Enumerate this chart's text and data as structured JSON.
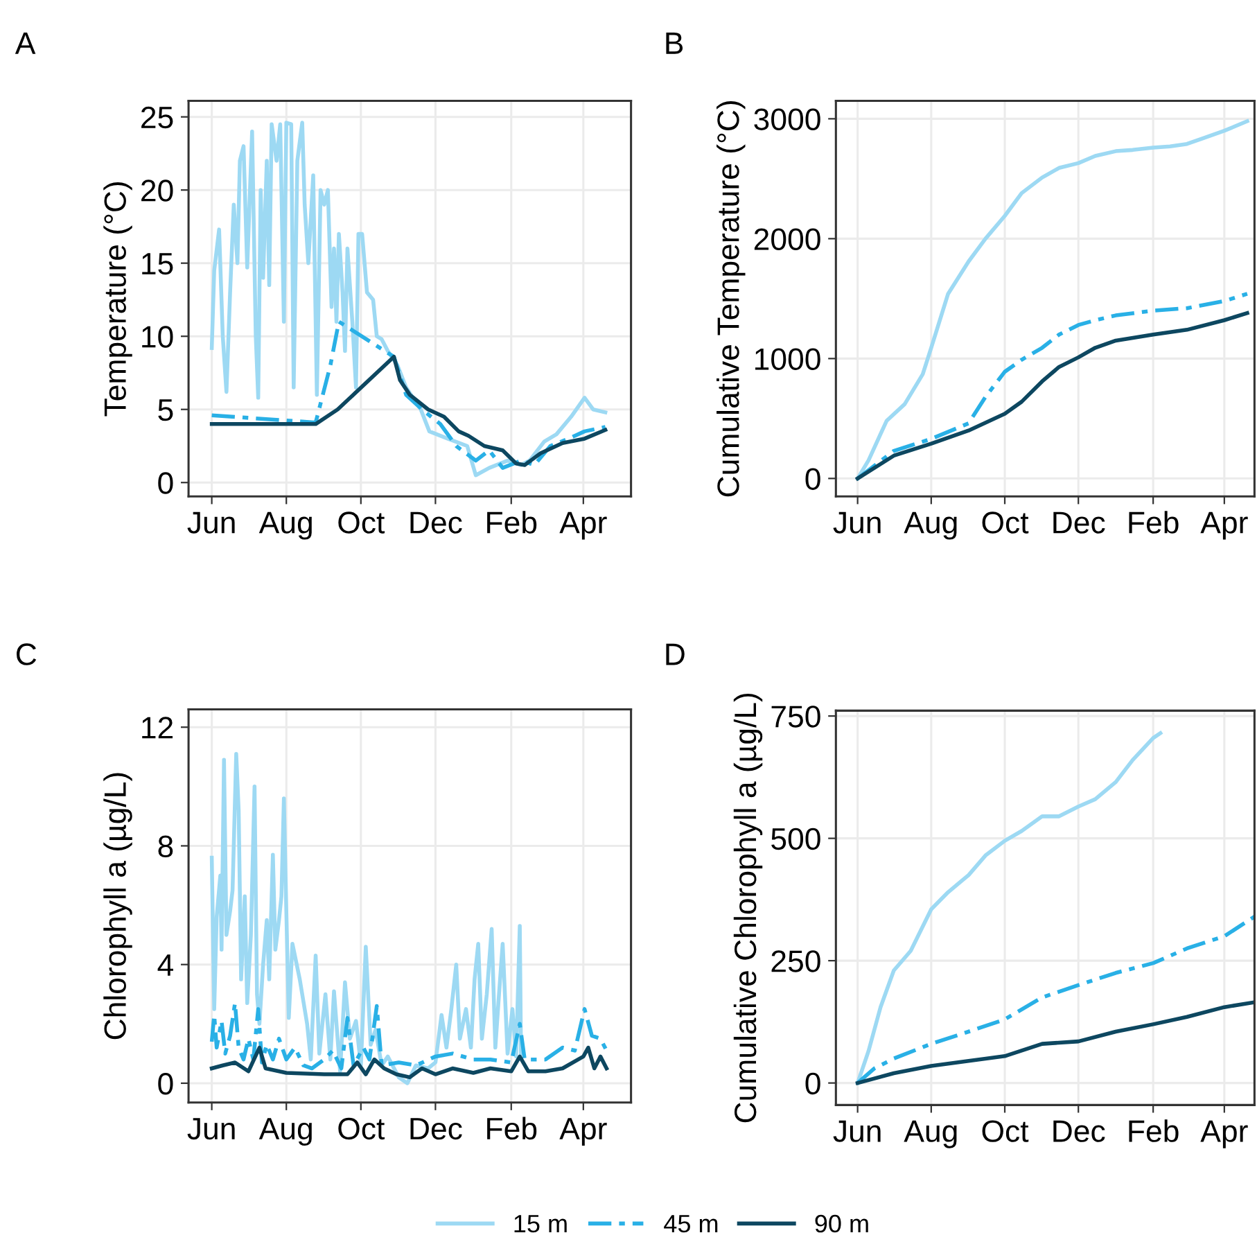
{
  "chart_data": [
    {
      "type": "line",
      "title": "A",
      "ylabel": "Temperature (°C)",
      "xlim": [
        "2000-05-13",
        "2001-05-10"
      ],
      "xticks": [
        {
          "value": "2000-06-01",
          "label": "Jun"
        },
        {
          "value": "2000-08-01",
          "label": "Aug"
        },
        {
          "value": "2000-10-01",
          "label": "Oct"
        },
        {
          "value": "2000-12-01",
          "label": "Dec"
        },
        {
          "value": "2001-02-01",
          "label": "Feb"
        },
        {
          "value": "2001-04-01",
          "label": "Apr"
        }
      ],
      "ylim": [
        -0.95,
        26.1
      ],
      "yticks": [
        0,
        5,
        10,
        15,
        20,
        25
      ],
      "grid": true,
      "legend": "bottom",
      "series": [
        {
          "name": "15 m",
          "color": "#9dd9f3",
          "line_style": "solid",
          "x": [
            "2000-06-01",
            "2000-06-03",
            "2000-06-07",
            "2000-06-10",
            "2000-06-13",
            "2000-06-16",
            "2000-06-19",
            "2000-06-22",
            "2000-06-24",
            "2000-06-27",
            "2000-06-30",
            "2000-07-04",
            "2000-07-07",
            "2000-07-09",
            "2000-07-11",
            "2000-07-13",
            "2000-07-16",
            "2000-07-18",
            "2000-07-20",
            "2000-07-24",
            "2000-07-27",
            "2000-07-30",
            "2000-08-01",
            "2000-08-05",
            "2000-08-07",
            "2000-08-10",
            "2000-08-14",
            "2000-08-16",
            "2000-08-19",
            "2000-08-23",
            "2000-08-26",
            "2000-08-29",
            "2000-09-01",
            "2000-09-04",
            "2000-09-07",
            "2000-09-09",
            "2000-09-11",
            "2000-09-13",
            "2000-09-16",
            "2000-09-18",
            "2000-09-20",
            "2000-09-24",
            "2000-09-27",
            "2000-09-29",
            "2000-10-02",
            "2000-10-06",
            "2000-10-11",
            "2000-10-14",
            "2000-10-18",
            "2000-10-23",
            "2000-10-31",
            "2000-11-07",
            "2000-11-19",
            "2000-11-26",
            "2000-12-11",
            "2000-12-27",
            "2001-01-03",
            "2001-01-14",
            "2001-01-29",
            "2001-02-09",
            "2001-02-16",
            "2001-02-28",
            "2001-03-10",
            "2001-03-22",
            "2001-04-02",
            "2001-04-09",
            "2001-04-19"
          ],
          "values": [
            9.2,
            14.5,
            17.3,
            10,
            6.2,
            13,
            19,
            15,
            22,
            23,
            14.7,
            24,
            10,
            5.8,
            20,
            14,
            22,
            13.5,
            24.5,
            22,
            24.5,
            11,
            24.6,
            24.5,
            6.5,
            22,
            24.6,
            19,
            15,
            21,
            6,
            20,
            19,
            20,
            12,
            16,
            11,
            17,
            13,
            9,
            16,
            11,
            6.5,
            17,
            17,
            13,
            12.5,
            10,
            9.8,
            9,
            8,
            6.5,
            5,
            3.5,
            3,
            2.5,
            0.5,
            1,
            1.5,
            1.2,
            1.5,
            2.8,
            3.3,
            4.5,
            5.8,
            5,
            4.8
          ]
        },
        {
          "name": "45 m",
          "color": "#29b0e6",
          "line_style": "dashdot",
          "x": [
            "2000-06-01",
            "2000-08-25",
            "2000-09-06",
            "2000-09-13",
            "2000-10-28",
            "2000-11-07",
            "2000-11-20",
            "2000-12-05",
            "2000-12-18",
            "2001-01-03",
            "2001-01-14",
            "2001-01-25",
            "2001-02-09",
            "2001-02-20",
            "2001-03-05",
            "2001-03-20",
            "2001-04-02",
            "2001-04-19"
          ],
          "values": [
            4.6,
            4.1,
            8,
            11,
            8.6,
            6,
            5,
            4,
            2.5,
            1.5,
            2.2,
            1,
            1.5,
            1.2,
            2.5,
            3,
            3.5,
            3.8
          ]
        },
        {
          "name": "90 m",
          "color": "#0d4760",
          "line_style": "solid",
          "x": [
            "2000-06-01",
            "2000-08-25",
            "2000-09-12",
            "2000-10-28",
            "2000-11-02",
            "2000-11-10",
            "2000-11-25",
            "2000-12-08",
            "2000-12-20",
            "2000-12-28",
            "2001-01-10",
            "2001-01-25",
            "2001-02-05",
            "2001-02-12",
            "2001-02-25",
            "2001-03-15",
            "2001-04-02",
            "2001-04-19"
          ],
          "values": [
            4,
            4,
            5,
            8.6,
            7,
            6,
            5,
            4.5,
            3.5,
            3.2,
            2.5,
            2.2,
            1.3,
            1.2,
            2,
            2.7,
            3,
            3.6
          ]
        }
      ]
    },
    {
      "type": "line",
      "title": "B",
      "ylabel": "Cumulative Temperature (°C)",
      "xlim": [
        "2000-05-14",
        "2001-04-26"
      ],
      "xticks": [
        {
          "value": "2000-06-01",
          "label": "Jun"
        },
        {
          "value": "2000-08-01",
          "label": "Aug"
        },
        {
          "value": "2000-10-01",
          "label": "Oct"
        },
        {
          "value": "2000-12-01",
          "label": "Dec"
        },
        {
          "value": "2001-02-01",
          "label": "Feb"
        },
        {
          "value": "2001-04-01",
          "label": "Apr"
        }
      ],
      "ylim": [
        -150,
        3150
      ],
      "yticks": [
        0,
        1000,
        2000,
        3000
      ],
      "grid": true,
      "legend": "bottom",
      "series": [
        {
          "name": "15 m",
          "color": "#9dd9f3",
          "line_style": "solid",
          "x": [
            "2000-06-01",
            "2000-06-10",
            "2000-06-25",
            "2000-07-10",
            "2000-07-25",
            "2000-08-01",
            "2000-08-15",
            "2000-09-01",
            "2000-09-15",
            "2000-10-01",
            "2000-10-15",
            "2000-11-01",
            "2000-11-15",
            "2000-12-01",
            "2000-12-15",
            "2001-01-01",
            "2001-01-15",
            "2001-02-01",
            "2001-02-15",
            "2001-03-01",
            "2001-03-15",
            "2001-04-01",
            "2001-04-20"
          ],
          "values": [
            0,
            150,
            480,
            620,
            870,
            1090,
            1540,
            1810,
            2000,
            2190,
            2380,
            2510,
            2590,
            2630,
            2690,
            2730,
            2740,
            2760,
            2770,
            2790,
            2840,
            2900,
            2980
          ]
        },
        {
          "name": "45 m",
          "color": "#29b0e6",
          "line_style": "dashdot",
          "x": [
            "2000-06-01",
            "2000-07-01",
            "2000-08-01",
            "2000-09-01",
            "2000-09-15",
            "2000-10-01",
            "2000-10-15",
            "2000-11-01",
            "2000-11-15",
            "2000-12-01",
            "2000-12-15",
            "2001-01-01",
            "2001-02-01",
            "2001-03-01",
            "2001-04-01",
            "2001-04-20"
          ],
          "values": [
            0,
            230,
            330,
            460,
            680,
            890,
            990,
            1090,
            1200,
            1280,
            1320,
            1360,
            1400,
            1420,
            1480,
            1540
          ]
        },
        {
          "name": "90 m",
          "color": "#0d4760",
          "line_style": "solid",
          "x": [
            "2000-06-01",
            "2000-07-01",
            "2000-08-01",
            "2000-09-01",
            "2000-10-01",
            "2000-10-15",
            "2000-11-01",
            "2000-11-15",
            "2000-12-01",
            "2000-12-15",
            "2001-01-01",
            "2001-02-01",
            "2001-03-01",
            "2001-04-01",
            "2001-04-20"
          ],
          "values": [
            0,
            190,
            290,
            400,
            540,
            640,
            810,
            930,
            1010,
            1090,
            1150,
            1200,
            1240,
            1320,
            1380
          ]
        }
      ]
    },
    {
      "type": "line",
      "title": "C",
      "ylabel": "Chlorophyll a (µg/L)",
      "xlim": [
        "2000-05-13",
        "2001-05-10"
      ],
      "xticks": [
        {
          "value": "2000-06-01",
          "label": "Jun"
        },
        {
          "value": "2000-08-01",
          "label": "Aug"
        },
        {
          "value": "2000-10-01",
          "label": "Oct"
        },
        {
          "value": "2000-12-01",
          "label": "Dec"
        },
        {
          "value": "2001-02-01",
          "label": "Feb"
        },
        {
          "value": "2001-04-01",
          "label": "Apr"
        }
      ],
      "ylim": [
        -0.65,
        12.6
      ],
      "yticks": [
        0,
        4,
        8,
        12
      ],
      "grid": true,
      "legend": "bottom",
      "series": [
        {
          "name": "15 m",
          "color": "#9dd9f3",
          "line_style": "solid",
          "x": [
            "2000-06-01",
            "2000-06-03",
            "2000-06-05",
            "2000-06-08",
            "2000-06-09",
            "2000-06-11",
            "2000-06-13",
            "2000-06-16",
            "2000-06-18",
            "2000-06-21",
            "2000-06-23",
            "2000-06-25",
            "2000-06-28",
            "2000-06-30",
            "2000-07-03",
            "2000-07-06",
            "2000-07-08",
            "2000-07-10",
            "2000-07-13",
            "2000-07-16",
            "2000-07-18",
            "2000-07-21",
            "2000-07-23",
            "2000-07-26",
            "2000-07-28",
            "2000-07-30",
            "2000-08-01",
            "2000-08-03",
            "2000-08-06",
            "2000-08-09",
            "2000-08-12",
            "2000-08-16",
            "2000-08-18",
            "2000-08-21",
            "2000-08-25",
            "2000-08-28",
            "2000-09-02",
            "2000-09-06",
            "2000-09-09",
            "2000-09-14",
            "2000-09-18",
            "2000-09-22",
            "2000-09-27",
            "2000-10-01",
            "2000-10-05",
            "2000-10-09",
            "2000-10-13",
            "2000-10-18",
            "2000-10-23",
            "2000-11-01",
            "2000-11-08",
            "2000-11-15",
            "2000-11-25",
            "2000-12-01",
            "2000-12-06",
            "2000-12-10",
            "2000-12-14",
            "2000-12-18",
            "2000-12-21",
            "2000-12-26",
            "2000-12-30",
            "2001-01-02",
            "2001-01-05",
            "2001-01-08",
            "2001-01-12",
            "2001-01-16",
            "2001-01-19",
            "2001-01-22",
            "2001-01-25",
            "2001-01-29",
            "2001-02-02",
            "2001-02-05",
            "2001-02-08",
            "2001-02-09"
          ],
          "values": [
            7.6,
            2.5,
            5.6,
            7,
            4.5,
            10.9,
            5,
            5.8,
            6.5,
            11.1,
            9.2,
            3.5,
            6.3,
            2.7,
            5,
            10,
            3,
            2,
            4,
            5.5,
            3.5,
            7.7,
            4.5,
            5.5,
            6.3,
            9.6,
            5.8,
            2.2,
            4.7,
            4.1,
            3.5,
            2.5,
            2,
            0.8,
            4.3,
            1,
            3,
            0.8,
            3.1,
            0.4,
            3.4,
            1.5,
            2.1,
            0.6,
            4.6,
            1.3,
            1.8,
            0.6,
            0.9,
            0.2,
            0,
            0.6,
            0.5,
            0.7,
            2.3,
            1.2,
            2.5,
            4,
            1.5,
            2.5,
            1.2,
            3.5,
            4.7,
            1.5,
            3,
            5.2,
            1.2,
            3,
            4.7,
            1,
            2.5,
            0.9,
            5.3,
            1
          ]
        },
        {
          "name": "45 m",
          "color": "#29b0e6",
          "line_style": "dashdot",
          "x": [
            "2000-06-01",
            "2000-06-03",
            "2000-06-05",
            "2000-06-09",
            "2000-06-12",
            "2000-06-16",
            "2000-06-20",
            "2000-06-23",
            "2000-06-27",
            "2000-07-01",
            "2000-07-05",
            "2000-07-09",
            "2000-07-12",
            "2000-07-16",
            "2000-07-21",
            "2000-07-26",
            "2000-08-01",
            "2000-08-08",
            "2000-08-15",
            "2000-08-22",
            "2000-09-01",
            "2000-09-08",
            "2000-09-15",
            "2000-09-20",
            "2000-09-25",
            "2000-10-03",
            "2000-10-08",
            "2000-10-14",
            "2000-10-18",
            "2000-11-01",
            "2000-11-15",
            "2000-12-01",
            "2000-12-15",
            "2001-01-01",
            "2001-01-15",
            "2001-02-01",
            "2001-02-08",
            "2001-02-12",
            "2001-03-01",
            "2001-03-15",
            "2001-03-25",
            "2001-04-02",
            "2001-04-08",
            "2001-04-15",
            "2001-04-20"
          ],
          "values": [
            1.4,
            2.3,
            1.2,
            2.1,
            1,
            1.6,
            2.7,
            1.2,
            0.8,
            1.5,
            0.8,
            2.5,
            0.7,
            1.3,
            0.8,
            1.5,
            0.8,
            1.2,
            0.6,
            0.5,
            0.8,
            1.1,
            0.5,
            2.2,
            0.6,
            1.2,
            0.8,
            2.6,
            0.6,
            0.7,
            0.6,
            0.9,
            1,
            0.8,
            0.8,
            0.7,
            2,
            0.8,
            0.8,
            1.2,
            1.1,
            2.5,
            1.6,
            1.5,
            1.1
          ]
        },
        {
          "name": "90 m",
          "color": "#0d4760",
          "line_style": "solid",
          "x": [
            "2000-06-01",
            "2000-06-10",
            "2000-06-20",
            "2000-07-01",
            "2000-07-10",
            "2000-07-15",
            "2000-08-01",
            "2000-09-01",
            "2000-09-20",
            "2000-09-28",
            "2000-10-05",
            "2000-10-12",
            "2000-10-20",
            "2000-10-30",
            "2000-11-10",
            "2000-11-20",
            "2000-12-01",
            "2000-12-15",
            "2001-01-01",
            "2001-01-15",
            "2001-02-01",
            "2001-02-08",
            "2001-02-15",
            "2001-03-01",
            "2001-03-15",
            "2001-04-01",
            "2001-04-05",
            "2001-04-10",
            "2001-04-15",
            "2001-04-20"
          ],
          "values": [
            0.5,
            0.6,
            0.7,
            0.4,
            1.2,
            0.5,
            0.35,
            0.3,
            0.3,
            0.7,
            0.3,
            0.8,
            0.5,
            0.3,
            0.2,
            0.5,
            0.3,
            0.5,
            0.35,
            0.5,
            0.4,
            0.9,
            0.4,
            0.4,
            0.5,
            0.9,
            1.2,
            0.5,
            0.9,
            0.5
          ]
        }
      ]
    },
    {
      "type": "line",
      "title": "D",
      "ylabel": "Cumulative Chlorophyll a (µg/L)",
      "xlim": [
        "2000-05-14",
        "2001-04-26"
      ],
      "xticks": [
        {
          "value": "2000-06-01",
          "label": "Jun"
        },
        {
          "value": "2000-08-01",
          "label": "Aug"
        },
        {
          "value": "2000-10-01",
          "label": "Oct"
        },
        {
          "value": "2000-12-01",
          "label": "Dec"
        },
        {
          "value": "2001-02-01",
          "label": "Feb"
        },
        {
          "value": "2001-04-01",
          "label": "Apr"
        }
      ],
      "ylim": [
        -45,
        761
      ],
      "yticks": [
        0,
        250,
        500,
        750
      ],
      "grid": true,
      "legend": "bottom",
      "series": [
        {
          "name": "15 m",
          "color": "#9dd9f3",
          "line_style": "solid",
          "x": [
            "2000-06-01",
            "2000-06-10",
            "2000-06-20",
            "2000-07-01",
            "2000-07-15",
            "2000-08-01",
            "2000-08-15",
            "2000-09-01",
            "2000-09-15",
            "2000-10-01",
            "2000-10-15",
            "2000-11-01",
            "2000-11-15",
            "2000-12-01",
            "2000-12-15",
            "2001-01-01",
            "2001-01-15",
            "2001-02-01",
            "2001-02-07"
          ],
          "values": [
            0,
            65,
            155,
            230,
            270,
            355,
            390,
            425,
            465,
            495,
            515,
            545,
            545,
            565,
            580,
            615,
            660,
            705,
            715
          ]
        },
        {
          "name": "45 m",
          "color": "#29b0e6",
          "line_style": "dashdot",
          "x": [
            "2000-06-01",
            "2000-06-15",
            "2000-07-01",
            "2000-08-01",
            "2000-09-01",
            "2000-10-01",
            "2000-11-01",
            "2000-12-01",
            "2001-01-01",
            "2001-02-01",
            "2001-03-01",
            "2001-04-01",
            "2001-04-26"
          ],
          "values": [
            0,
            30,
            50,
            80,
            105,
            130,
            175,
            200,
            225,
            245,
            275,
            300,
            340
          ]
        },
        {
          "name": "90 m",
          "color": "#0d4760",
          "line_style": "solid",
          "x": [
            "2000-06-01",
            "2000-07-01",
            "2000-08-01",
            "2000-09-01",
            "2000-10-01",
            "2000-11-01",
            "2000-12-01",
            "2001-01-01",
            "2001-02-01",
            "2001-03-01",
            "2001-04-01",
            "2001-04-26"
          ],
          "values": [
            0,
            20,
            35,
            45,
            55,
            80,
            85,
            105,
            120,
            135,
            155,
            165
          ]
        }
      ]
    }
  ]
}
